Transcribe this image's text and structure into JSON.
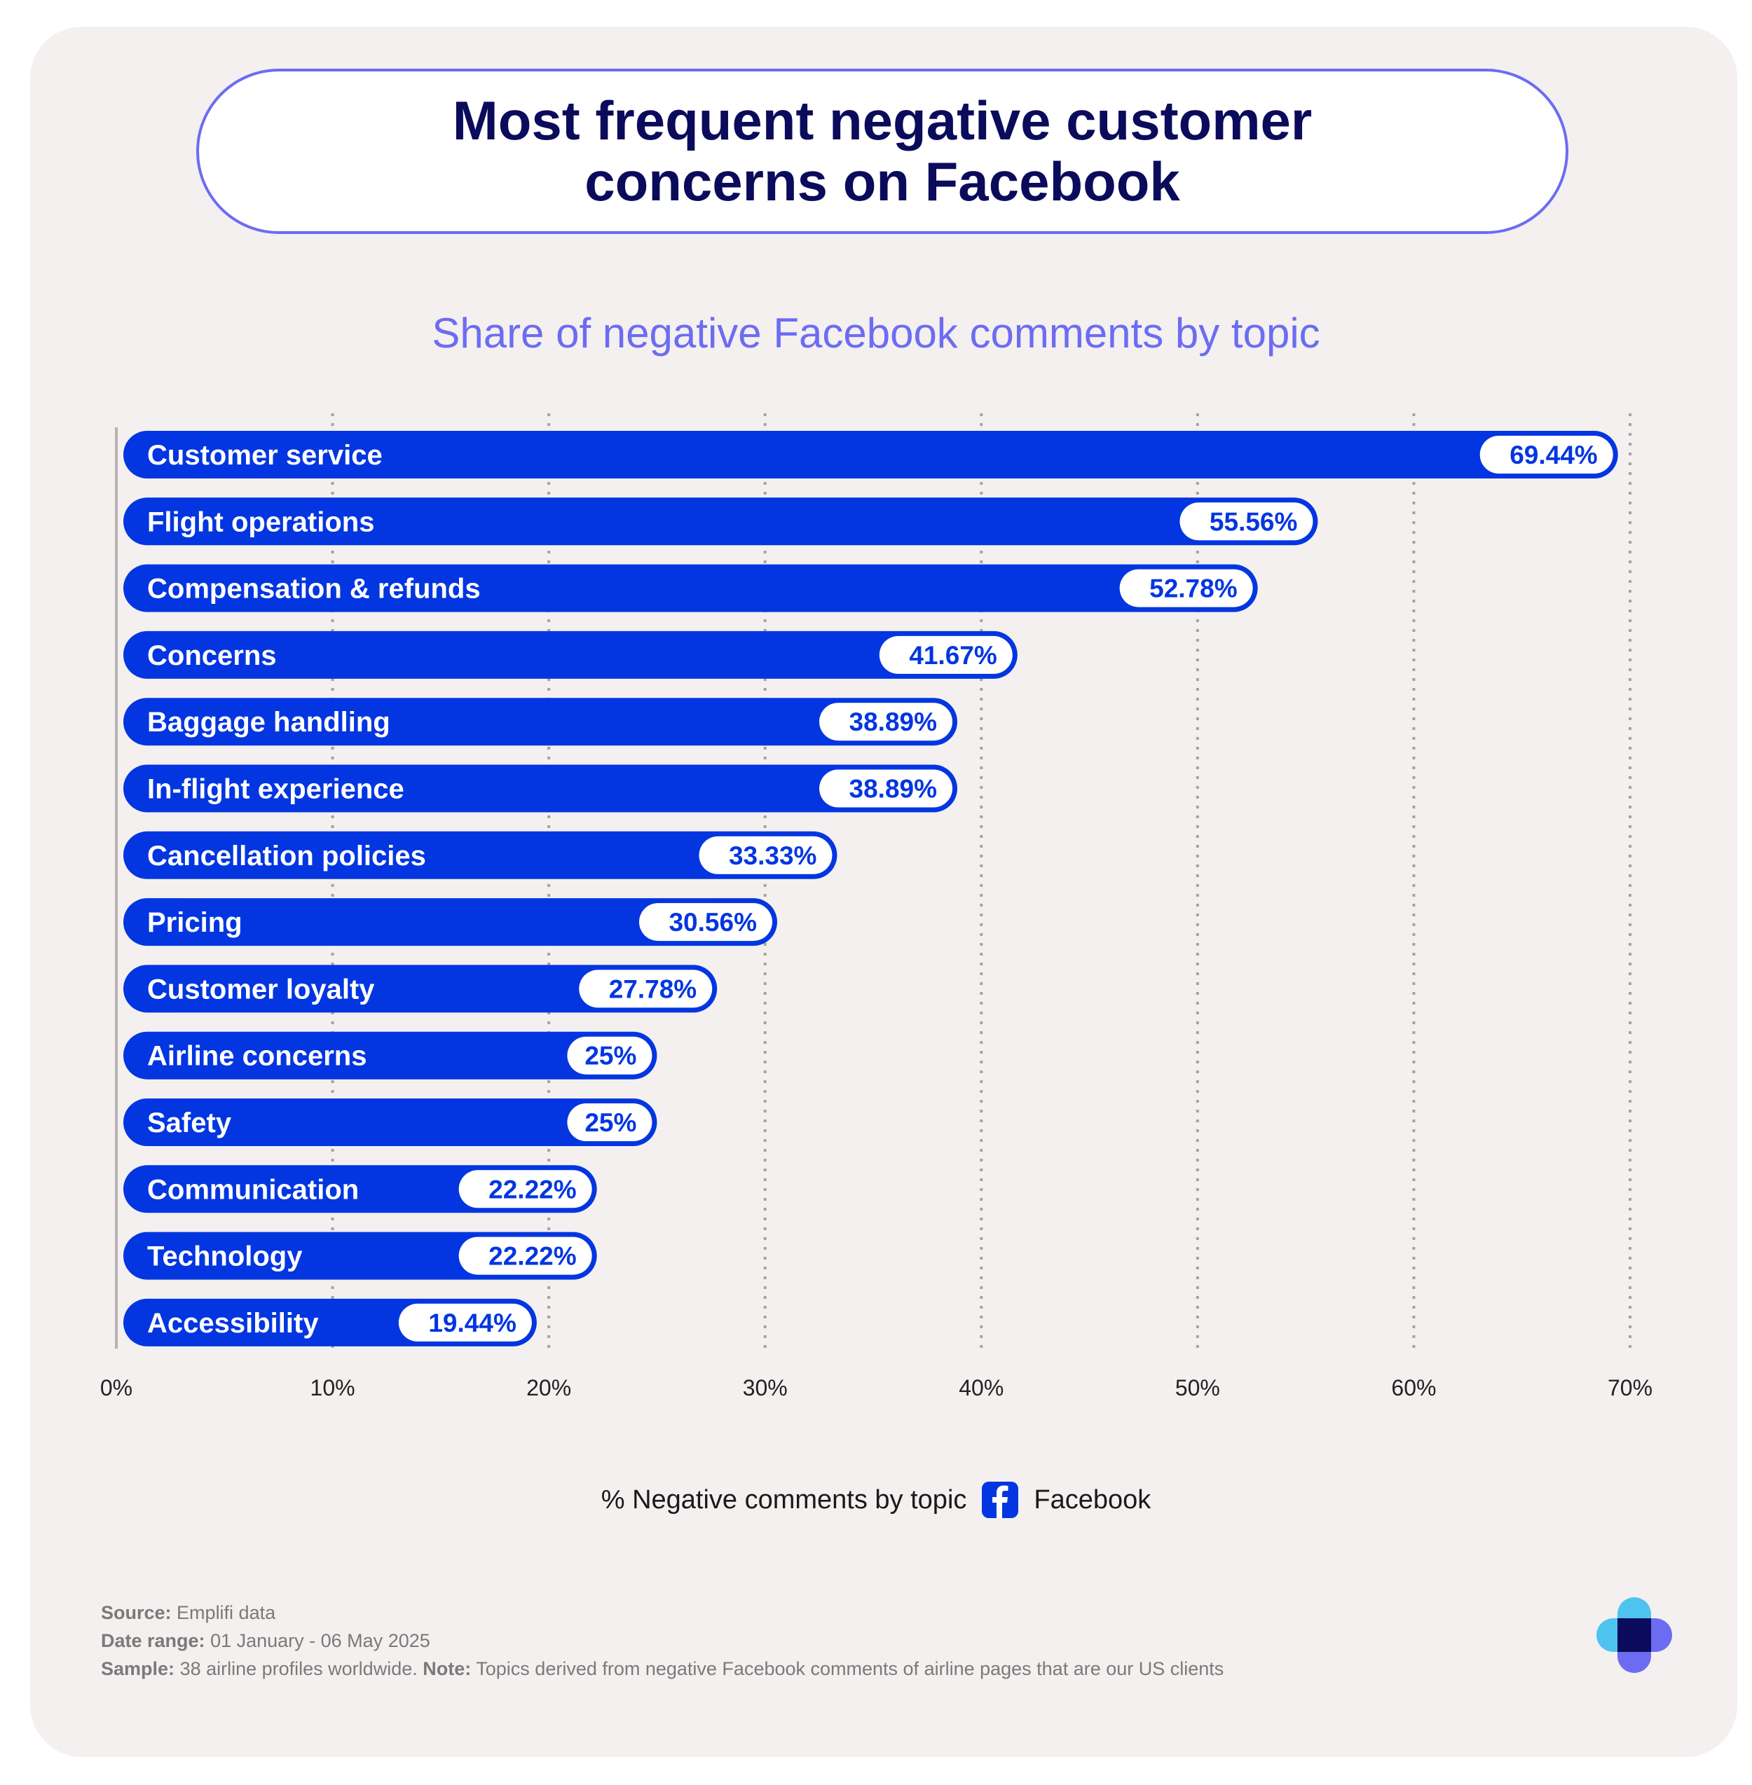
{
  "title": "Most frequent negative customer concerns on Facebook",
  "subtitle": "Share of negative Facebook comments by topic",
  "chart_data": {
    "type": "bar",
    "orientation": "horizontal",
    "title": "Share of negative Facebook comments by topic",
    "xlabel": "% Negative comments by topic",
    "ylabel": "",
    "xlim": [
      0,
      70
    ],
    "grid": true,
    "categories": [
      "Customer service",
      "Flight operations",
      "Compensation & refunds",
      "Concerns",
      "Baggage handling",
      "In-flight experience",
      "Cancellation policies",
      "Pricing",
      "Customer loyalty",
      "Airline concerns",
      "Safety",
      "Communication",
      "Technology",
      "Accessibility"
    ],
    "values": [
      69.44,
      55.56,
      52.78,
      41.67,
      38.89,
      38.89,
      33.33,
      30.56,
      27.78,
      25,
      25,
      22.22,
      22.22,
      19.44
    ],
    "value_labels": [
      "69.44%",
      "55.56%",
      "52.78%",
      "41.67%",
      "38.89%",
      "38.89%",
      "33.33%",
      "30.56%",
      "27.78%",
      "25%",
      "25%",
      "22.22%",
      "22.22%",
      "19.44%"
    ],
    "tick_labels": [
      "0%",
      "10%",
      "20%",
      "30%",
      "40%",
      "50%",
      "60%",
      "70%"
    ],
    "tick_values": [
      0,
      10,
      20,
      30,
      40,
      50,
      60,
      70
    ],
    "bar_color": "#0336e0",
    "legend": "bottom-center"
  },
  "legend": {
    "label": "% Negative comments by topic",
    "platform": "Facebook",
    "icon": "facebook-icon"
  },
  "footnote": {
    "source_label": "Source:",
    "source_value": "Emplifi data",
    "date_label": "Date range:",
    "date_value": "01 January - 06 May 2025",
    "sample_label": "Sample:",
    "sample_value": "38 airline profiles worldwide.",
    "note_label": "Note:",
    "note_value": "Topics derived from negative Facebook comments of airline pages that are our US clients"
  },
  "colors": {
    "accent": "#0336e0",
    "title": "#0b0b5c",
    "subtitle": "#6c6cf2",
    "background": "#f3f0ef"
  },
  "logo": "emplifi-logo"
}
